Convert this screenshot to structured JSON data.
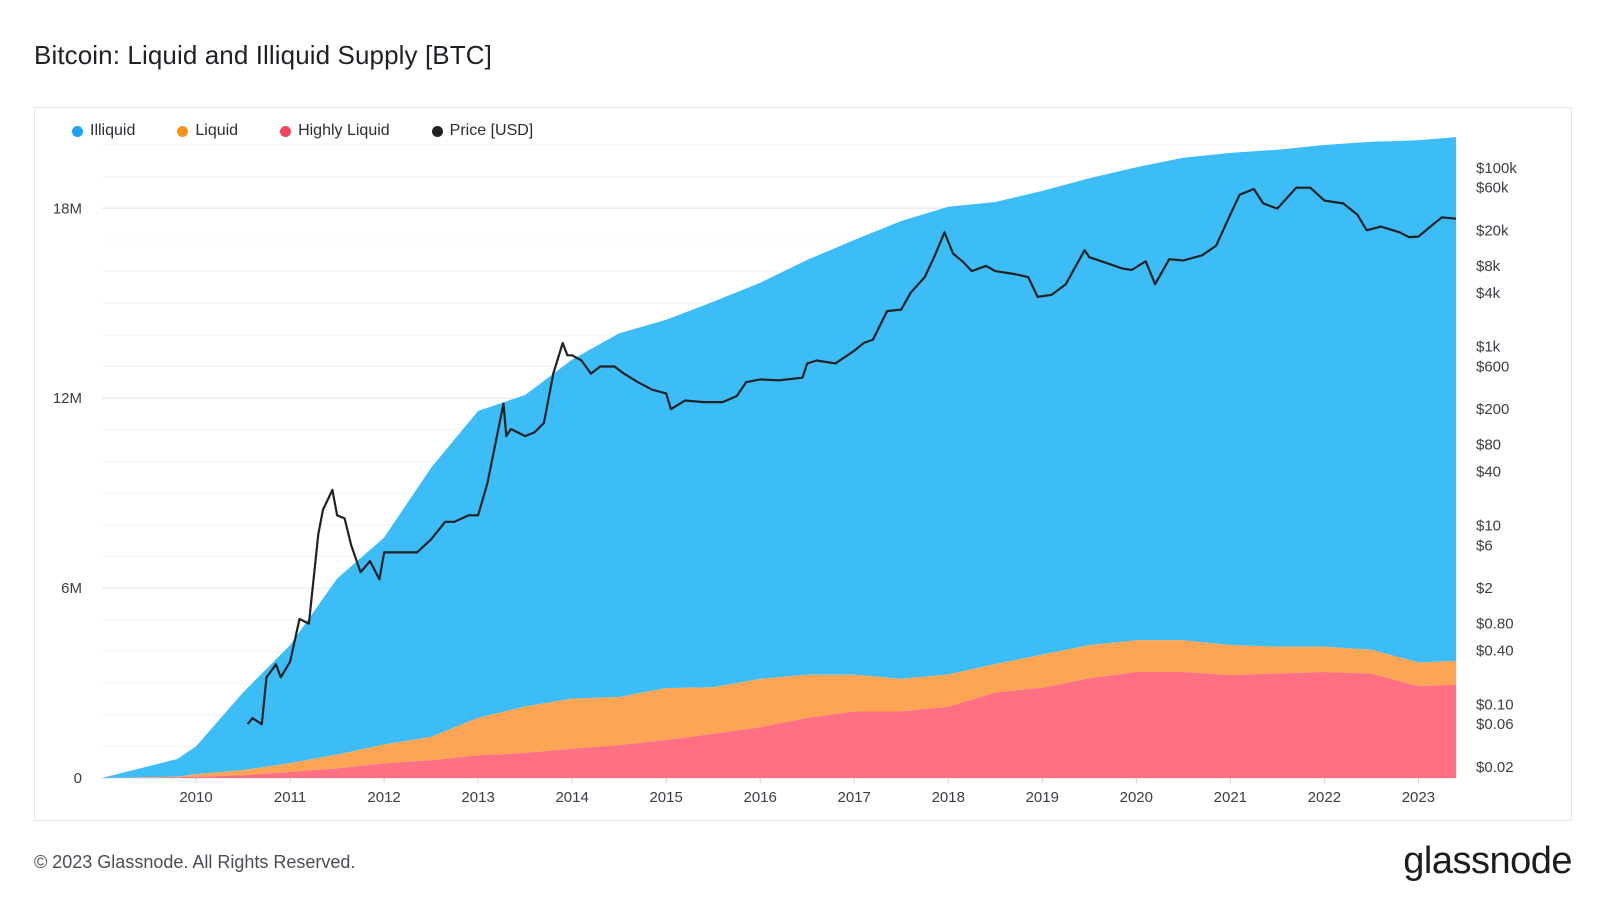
{
  "header": {
    "title": "Bitcoin: Liquid and Illiquid Supply [BTC]"
  },
  "footer": {
    "copyright": "© 2023 Glassnode. All Rights Reserved.",
    "brand": "glassnode"
  },
  "watermark": "glassnode",
  "colors": {
    "illiquid": "#3dbdf8",
    "liquid": "#fca554",
    "highly_liquid": "#ff7182",
    "price": "#222222"
  },
  "legend": [
    {
      "label": "Illiquid",
      "color": "#1ba4f2"
    },
    {
      "label": "Liquid",
      "color": "#f7931a"
    },
    {
      "label": "Highly Liquid",
      "color": "#f2465f"
    },
    {
      "label": "Price [USD]",
      "color": "#222222"
    }
  ],
  "chart_data": {
    "type": "area",
    "title": "Bitcoin: Liquid and Illiquid Supply [BTC]",
    "stacked": true,
    "x_range": [
      2009.0,
      2023.4
    ],
    "x_ticks": [
      "2010",
      "2011",
      "2012",
      "2013",
      "2014",
      "2015",
      "2016",
      "2017",
      "2018",
      "2019",
      "2020",
      "2021",
      "2022",
      "2023"
    ],
    "y_left": {
      "min": 0,
      "max": 20000000,
      "ticks": [
        0,
        6000000,
        12000000,
        18000000
      ],
      "tick_labels": [
        "0",
        "6M",
        "12M",
        "18M"
      ]
    },
    "y_right": {
      "scale": "log",
      "min": 0.015,
      "max": 180000,
      "ticks": [
        0.02,
        0.06,
        0.1,
        0.4,
        0.8,
        2,
        6,
        10,
        40,
        80,
        200,
        600,
        1000,
        4000,
        8000,
        20000,
        60000,
        100000
      ],
      "tick_labels": [
        "$0.02",
        "$0.06",
        "$0.10",
        "$0.40",
        "$0.80",
        "$2",
        "$6",
        "$10",
        "$40",
        "$80",
        "$200",
        "$600",
        "$1k",
        "$4k",
        "$8k",
        "$20k",
        "$60k",
        "$100k"
      ]
    },
    "x": [
      2009.0,
      2009.4,
      2009.8,
      2010.0,
      2010.5,
      2011.0,
      2011.5,
      2012.0,
      2012.5,
      2013.0,
      2013.5,
      2014.0,
      2014.5,
      2015.0,
      2015.5,
      2016.0,
      2016.5,
      2017.0,
      2017.5,
      2018.0,
      2018.5,
      2019.0,
      2019.5,
      2020.0,
      2020.5,
      2021.0,
      2021.5,
      2022.0,
      2022.5,
      2023.0,
      2023.4
    ],
    "series": [
      {
        "name": "Highly Liquid",
        "values": [
          0,
          10000,
          20000,
          40000,
          90000,
          200000,
          300000,
          460000,
          560000,
          720000,
          790000,
          930000,
          1040000,
          1200000,
          1400000,
          1600000,
          1900000,
          2100000,
          2100000,
          2250000,
          2700000,
          2850000,
          3150000,
          3350000,
          3350000,
          3250000,
          3300000,
          3350000,
          3300000,
          2900000,
          2950000
        ]
      },
      {
        "name": "Liquid",
        "values": [
          0,
          10000,
          20000,
          80000,
          160000,
          270000,
          440000,
          600000,
          740000,
          1180000,
          1470000,
          1580000,
          1520000,
          1640000,
          1470000,
          1530000,
          1360000,
          1160000,
          1030000,
          1020000,
          900000,
          1050000,
          1050000,
          1000000,
          1000000,
          950000,
          850000,
          800000,
          750000,
          750000,
          750000
        ]
      },
      {
        "name": "Illiquid",
        "values": [
          0,
          280000,
          560000,
          880000,
          2450000,
          3730000,
          5560000,
          6540000,
          8500000,
          9700000,
          9840000,
          10710000,
          11490000,
          11640000,
          12180000,
          12520000,
          13110000,
          13740000,
          14470000,
          14780000,
          14600000,
          14650000,
          14750000,
          14950000,
          15250000,
          15550000,
          15700000,
          15850000,
          16050000,
          16500000,
          16550000
        ]
      },
      {
        "name": "Price [USD]",
        "x": [
          2010.55,
          2010.6,
          2010.7,
          2010.75,
          2010.85,
          2010.9,
          2011.0,
          2011.1,
          2011.2,
          2011.3,
          2011.35,
          2011.45,
          2011.5,
          2011.58,
          2011.65,
          2011.75,
          2011.85,
          2011.95,
          2012.0,
          2012.1,
          2012.2,
          2012.35,
          2012.5,
          2012.65,
          2012.75,
          2012.9,
          2013.0,
          2013.1,
          2013.2,
          2013.27,
          2013.3,
          2013.35,
          2013.5,
          2013.6,
          2013.7,
          2013.8,
          2013.9,
          2013.95,
          2014.0,
          2014.1,
          2014.2,
          2014.3,
          2014.45,
          2014.55,
          2014.7,
          2014.85,
          2015.0,
          2015.05,
          2015.2,
          2015.4,
          2015.6,
          2015.75,
          2015.85,
          2016.0,
          2016.2,
          2016.45,
          2016.5,
          2016.6,
          2016.8,
          2017.0,
          2017.1,
          2017.2,
          2017.35,
          2017.5,
          2017.6,
          2017.75,
          2017.85,
          2017.96,
          2018.05,
          2018.15,
          2018.25,
          2018.4,
          2018.5,
          2018.7,
          2018.85,
          2018.95,
          2019.1,
          2019.25,
          2019.45,
          2019.5,
          2019.7,
          2019.85,
          2019.95,
          2020.1,
          2020.2,
          2020.35,
          2020.5,
          2020.7,
          2020.85,
          2021.0,
          2021.1,
          2021.25,
          2021.35,
          2021.5,
          2021.7,
          2021.85,
          2022.0,
          2022.2,
          2022.35,
          2022.45,
          2022.6,
          2022.8,
          2022.9,
          2023.0,
          2023.15,
          2023.25,
          2023.4
        ],
        "values": [
          0.06,
          0.07,
          0.06,
          0.2,
          0.28,
          0.2,
          0.3,
          0.9,
          0.8,
          8,
          15,
          25,
          13,
          12,
          6,
          3,
          4,
          2.5,
          5,
          5,
          5,
          5,
          7,
          11,
          11,
          13,
          13,
          30,
          100,
          230,
          100,
          120,
          100,
          110,
          140,
          500,
          1100,
          800,
          800,
          700,
          500,
          600,
          600,
          500,
          400,
          330,
          300,
          200,
          250,
          240,
          240,
          280,
          400,
          430,
          420,
          450,
          650,
          700,
          650,
          900,
          1100,
          1200,
          2500,
          2600,
          4000,
          6000,
          10000,
          19000,
          11000,
          9000,
          7000,
          8000,
          7000,
          6500,
          6000,
          3600,
          3800,
          5000,
          12000,
          10000,
          8500,
          7500,
          7200,
          9000,
          5000,
          9500,
          9200,
          10500,
          13500,
          30000,
          50000,
          58000,
          40000,
          35000,
          60000,
          60000,
          43000,
          40000,
          30000,
          20000,
          22000,
          19000,
          16800,
          17000,
          23000,
          28000,
          27000
        ]
      }
    ]
  }
}
